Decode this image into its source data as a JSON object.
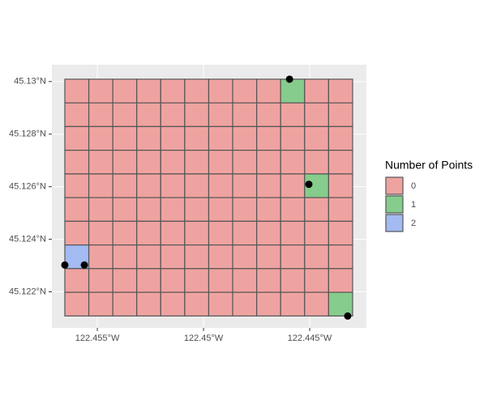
{
  "chart_data": {
    "type": "grid-map",
    "xlim": [
      -122.45714,
      -122.44233
    ],
    "ylim": [
      45.12063,
      45.13064
    ],
    "xticks": [
      {
        "value": -122.455,
        "label": "122.455°W"
      },
      {
        "value": -122.45,
        "label": "122.45°W"
      },
      {
        "value": -122.445,
        "label": "122.445°W"
      }
    ],
    "yticks": [
      {
        "value": 45.122,
        "label": "45.122°N"
      },
      {
        "value": 45.124,
        "label": "45.124°N"
      },
      {
        "value": 45.126,
        "label": "45.126°N"
      },
      {
        "value": 45.128,
        "label": "45.128°N"
      },
      {
        "value": 45.13,
        "label": "45.13°N"
      }
    ],
    "grid": true,
    "grid_bbox": [
      -122.45653,
      45.12108,
      -122.44298,
      45.13009
    ],
    "counts": [
      [
        0,
        0,
        0,
        0,
        0,
        0,
        0,
        0,
        0,
        1,
        0,
        0
      ],
      [
        0,
        0,
        0,
        0,
        0,
        0,
        0,
        0,
        0,
        0,
        0,
        0
      ],
      [
        0,
        0,
        0,
        0,
        0,
        0,
        0,
        0,
        0,
        0,
        0,
        0
      ],
      [
        0,
        0,
        0,
        0,
        0,
        0,
        0,
        0,
        0,
        0,
        0,
        0
      ],
      [
        0,
        0,
        0,
        0,
        0,
        0,
        0,
        0,
        0,
        0,
        1,
        0
      ],
      [
        0,
        0,
        0,
        0,
        0,
        0,
        0,
        0,
        0,
        0,
        0,
        0
      ],
      [
        0,
        0,
        0,
        0,
        0,
        0,
        0,
        0,
        0,
        0,
        0,
        0
      ],
      [
        2,
        0,
        0,
        0,
        0,
        0,
        0,
        0,
        0,
        0,
        0,
        0
      ],
      [
        0,
        0,
        0,
        0,
        0,
        0,
        0,
        0,
        0,
        0,
        0,
        0
      ],
      [
        0,
        0,
        0,
        0,
        0,
        0,
        0,
        0,
        0,
        0,
        0,
        1
      ]
    ],
    "points": {
      "x": [
        -122.44595,
        -122.44504,
        -122.45653,
        -122.45561,
        -122.44321
      ],
      "y": [
        45.13009,
        45.12609,
        45.12302,
        45.12302,
        45.12108
      ],
      "color": "#000000"
    },
    "legend": {
      "title": "Number of Points",
      "levels": [
        0,
        1,
        2
      ],
      "colors": [
        "#efa3a0",
        "#86cc8c",
        "#a3baf2"
      ]
    }
  }
}
